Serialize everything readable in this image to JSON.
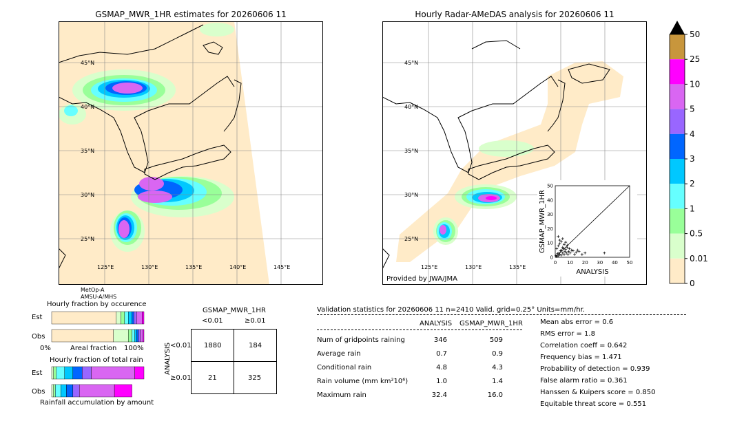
{
  "left_map": {
    "title": "GSMAP_MWR_1HR estimates for 20260606 11",
    "lat_labels": [
      "45°N",
      "40°N",
      "35°N",
      "30°N",
      "25°N"
    ],
    "lon_labels": [
      "125°E",
      "130°E",
      "135°E",
      "140°E",
      "145°E"
    ],
    "satellite_note_1": "MetOp-A",
    "satellite_note_2": "AMSU-A/MHS"
  },
  "right_map": {
    "title": "Hourly Radar-AMeDAS analysis for 20260606 11",
    "lat_labels": [
      "45°N",
      "40°N",
      "35°N",
      "30°N",
      "25°N"
    ],
    "lon_labels": [
      "125°E",
      "130°E",
      "135°E"
    ],
    "provider": "Provided by JWA/JMA"
  },
  "scatter_inset": {
    "xlabel": "ANALYSIS",
    "ylabel": "GSMAP_MWR_1HR",
    "ticks": [
      "0",
      "10",
      "20",
      "30",
      "40",
      "50"
    ]
  },
  "colorbar": {
    "labels": [
      "50",
      "25",
      "10",
      "5",
      "4",
      "3",
      "2",
      "1",
      "0.5",
      "0.01",
      "0"
    ],
    "colors": [
      "#c8963c",
      "#ff00ff",
      "#d966f2",
      "#9966ff",
      "#0066ff",
      "#00c8ff",
      "#66ffff",
      "#99ff99",
      "#d9ffcc",
      "#ffebc8"
    ],
    "over_color": "#000000"
  },
  "occurrence": {
    "title": "Hourly fraction by occurence",
    "row_est": "Est",
    "row_obs": "Obs",
    "axis_left": "0%",
    "axis_mid": "Areal fraction",
    "axis_right": "100%"
  },
  "total_rain": {
    "title": "Hourly fraction of total rain",
    "row_est": "Est",
    "row_obs": "Obs",
    "footer": "Rainfall accumulation by amount"
  },
  "contingency": {
    "title": "GSMAP_MWR_1HR",
    "col_lt": "<0.01",
    "col_ge": "≥0.01",
    "row_label": "ANALYSIS",
    "row_lt": "<0.01",
    "row_ge": "≥0.01",
    "cells": [
      "1880",
      "184",
      "21",
      "325"
    ]
  },
  "validation": {
    "header": "Validation statistics for 20260606 11  n=2410 Valid. grid=0.25° Units=mm/hr.",
    "col_analysis": "ANALYSIS",
    "col_gsmap": "GSMAP_MWR_1HR",
    "rows": [
      {
        "label": "Num of gridpoints raining",
        "analysis": "346",
        "gsmap": "509"
      },
      {
        "label": "Average rain",
        "analysis": "0.7",
        "gsmap": "0.9"
      },
      {
        "label": "Conditional rain",
        "analysis": "4.8",
        "gsmap": "4.3"
      },
      {
        "label": "Rain volume (mm km²10⁶)",
        "analysis": "1.0",
        "gsmap": "1.4"
      },
      {
        "label": "Maximum rain",
        "analysis": "32.4",
        "gsmap": "16.0"
      }
    ],
    "scores": [
      "Mean abs error =    0.6",
      "RMS error =    1.8",
      "Correlation coeff =  0.642",
      "Frequency bias =  1.471",
      "Probability of detection =  0.939",
      "False alarm ratio =  0.361",
      "Hanssen & Kuipers score =  0.850",
      "Equitable threat score =  0.551"
    ]
  },
  "chart_data": [
    {
      "type": "bar",
      "title": "Hourly fraction by occurence",
      "categories": [
        "Est",
        "Obs"
      ],
      "xlabel": "Areal fraction",
      "xlim": [
        0,
        100
      ],
      "series": [
        {
          "name": "0",
          "color": "#ffebc8",
          "values": [
            70,
            67
          ]
        },
        {
          "name": "0.01",
          "color": "#d9ffcc",
          "values": [
            5,
            16
          ]
        },
        {
          "name": "0.5",
          "color": "#99ff99",
          "values": [
            4,
            4
          ]
        },
        {
          "name": "1",
          "color": "#66ffff",
          "values": [
            4,
            3
          ]
        },
        {
          "name": "2",
          "color": "#00c8ff",
          "values": [
            4,
            2
          ]
        },
        {
          "name": "3",
          "color": "#0066ff",
          "values": [
            2,
            2
          ]
        },
        {
          "name": "4",
          "color": "#9966ff",
          "values": [
            3,
            2
          ]
        },
        {
          "name": "5",
          "color": "#d966f2",
          "values": [
            6,
            3
          ]
        },
        {
          "name": "10",
          "color": "#ff00ff",
          "values": [
            2,
            1
          ]
        }
      ]
    },
    {
      "type": "bar",
      "title": "Hourly fraction of total rain",
      "categories": [
        "Est",
        "Obs"
      ],
      "xlabel": "Rainfall accumulation by amount",
      "xlim": [
        0,
        100
      ],
      "series": [
        {
          "name": "0.01",
          "color": "#d9ffcc",
          "values": [
            2,
            2
          ]
        },
        {
          "name": "0.5",
          "color": "#99ff99",
          "values": [
            3,
            2
          ]
        },
        {
          "name": "1",
          "color": "#66ffff",
          "values": [
            9,
            6
          ]
        },
        {
          "name": "2",
          "color": "#00c8ff",
          "values": [
            9,
            6
          ]
        },
        {
          "name": "3",
          "color": "#0066ff",
          "values": [
            10,
            7
          ]
        },
        {
          "name": "4",
          "color": "#9966ff",
          "values": [
            10,
            7
          ]
        },
        {
          "name": "5",
          "color": "#d966f2",
          "values": [
            47,
            38
          ]
        },
        {
          "name": "10",
          "color": "#ff00ff",
          "values": [
            10,
            19
          ]
        }
      ]
    },
    {
      "type": "scatter",
      "xlabel": "ANALYSIS",
      "ylabel": "GSMAP_MWR_1HR",
      "xlim": [
        0,
        50
      ],
      "ylim": [
        0,
        50
      ],
      "points": [
        [
          0.5,
          1.2
        ],
        [
          1,
          0.5
        ],
        [
          1.5,
          2.5
        ],
        [
          2,
          1
        ],
        [
          2.5,
          3
        ],
        [
          3,
          2
        ],
        [
          3.5,
          4.5
        ],
        [
          4,
          1.5
        ],
        [
          4.5,
          5
        ],
        [
          5,
          3
        ],
        [
          5.5,
          6
        ],
        [
          6,
          2
        ],
        [
          6.5,
          4
        ],
        [
          7,
          5.5
        ],
        [
          7.5,
          3
        ],
        [
          8,
          7
        ],
        [
          8.5,
          2
        ],
        [
          9,
          4
        ],
        [
          9.5,
          6
        ],
        [
          10,
          3
        ],
        [
          11,
          5
        ],
        [
          12,
          4.5
        ],
        [
          13,
          2
        ],
        [
          14,
          3.5
        ],
        [
          15,
          5
        ],
        [
          16,
          4
        ],
        [
          18,
          2
        ],
        [
          20,
          3
        ],
        [
          1,
          6
        ],
        [
          2,
          8
        ],
        [
          3,
          9.5
        ],
        [
          4,
          11
        ],
        [
          5,
          7
        ],
        [
          6,
          9
        ],
        [
          7,
          10.5
        ],
        [
          8,
          8.5
        ],
        [
          3,
          12
        ],
        [
          5,
          13
        ],
        [
          2,
          14.5
        ],
        [
          33,
          3
        ]
      ]
    }
  ]
}
